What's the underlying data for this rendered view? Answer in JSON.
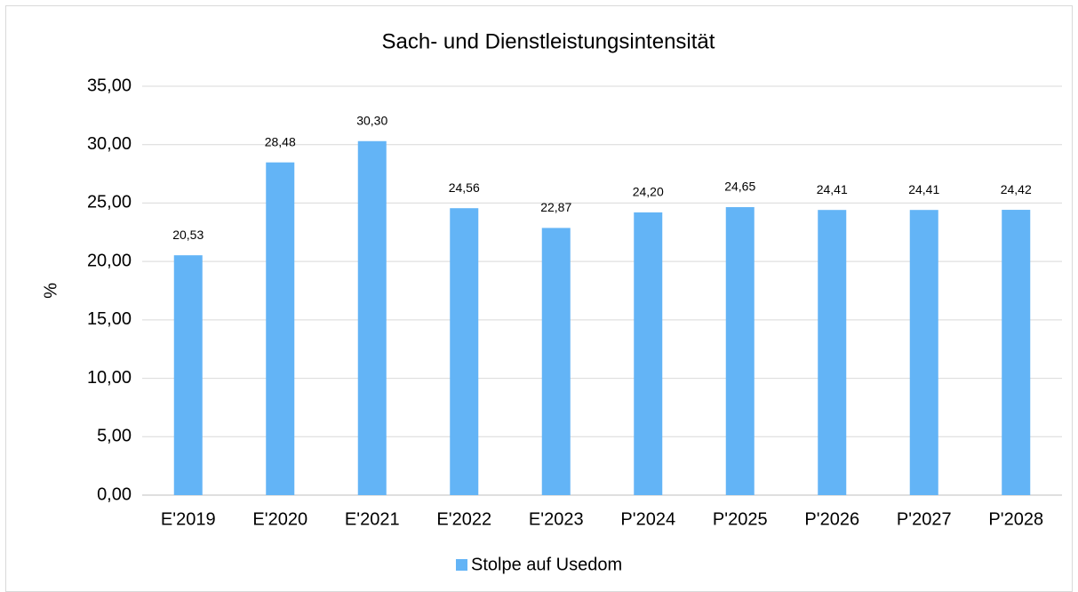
{
  "chart_data": {
    "type": "bar",
    "title": "Sach- und Dienstleistungsintensität",
    "y_label": "%",
    "categories": [
      "E'2019",
      "E'2020",
      "E'2021",
      "E'2022",
      "E'2023",
      "P'2024",
      "P'2025",
      "P'2026",
      "P'2027",
      "P'2028"
    ],
    "series": [
      {
        "name": "Stolpe auf Usedom",
        "color": "#63b4f6",
        "values": [
          20.53,
          28.48,
          30.3,
          24.56,
          22.87,
          24.2,
          24.65,
          24.41,
          24.41,
          24.42
        ],
        "value_labels": [
          "20,53",
          "28,48",
          "30,30",
          "24,56",
          "22,87",
          "24,20",
          "24,65",
          "24,41",
          "24,41",
          "24,42"
        ]
      }
    ],
    "ylim": [
      0,
      35
    ],
    "yticks": [
      {
        "value": 0,
        "label": "0,00"
      },
      {
        "value": 5,
        "label": "5,00"
      },
      {
        "value": 10,
        "label": "10,00"
      },
      {
        "value": 15,
        "label": "15,00"
      },
      {
        "value": 20,
        "label": "20,00"
      },
      {
        "value": 25,
        "label": "25,00"
      },
      {
        "value": 30,
        "label": "30,00"
      },
      {
        "value": 35,
        "label": "35,00"
      }
    ],
    "grid": true,
    "legend": "bottom"
  }
}
